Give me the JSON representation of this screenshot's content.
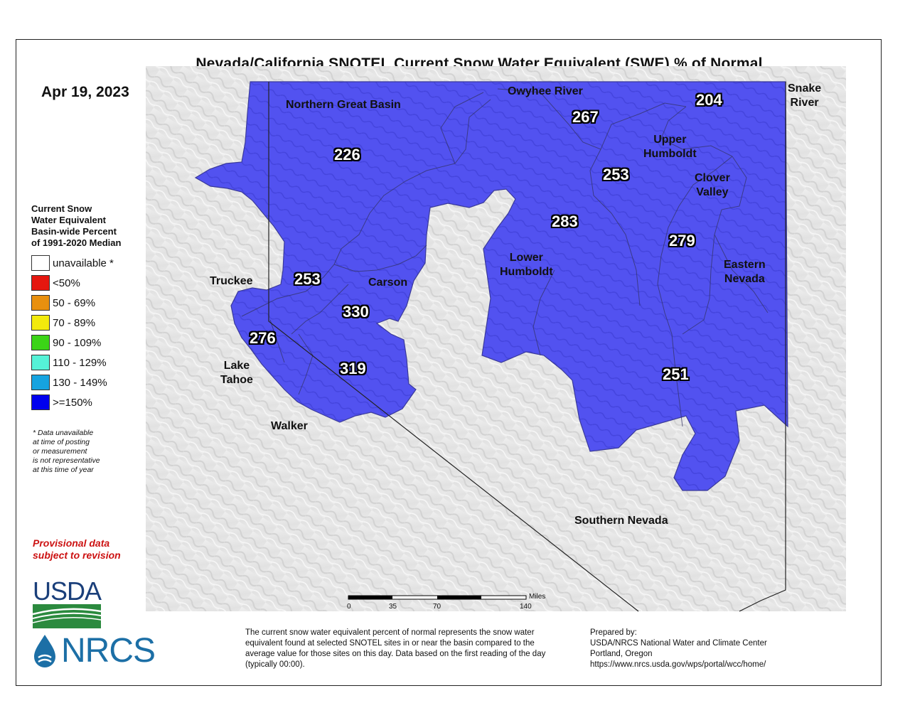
{
  "title": "Nevada/California SNOTEL Current Snow Water Equivalent (SWE) % of Normal",
  "date": "Apr 19, 2023",
  "colors": {
    "basin_fill": "#5252f0",
    "basin_stroke": "#3a3a9a",
    "terrain": "#e6e6e6",
    "gt150": "#0000ee"
  },
  "legend": {
    "title": "Current Snow\nWater Equivalent\nBasin-wide Percent\nof 1991-2020 Median",
    "items": [
      {
        "label": "unavailable *",
        "color": "#ffffff"
      },
      {
        "label": "<50%",
        "color": "#e5170f"
      },
      {
        "label": "50 - 69%",
        "color": "#e8900f"
      },
      {
        "label": "70 - 89%",
        "color": "#f2ea0c"
      },
      {
        "label": "90 - 109%",
        "color": "#3bd417"
      },
      {
        "label": "110 - 129%",
        "color": "#55f2d7"
      },
      {
        "label": "130 - 149%",
        "color": "#16a3e0"
      },
      {
        "label": ">=150%",
        "color": "#0000ee"
      }
    ],
    "note": "*  Data unavailable\n    at time of posting\n    or measurement\n    is not representative\n    at this time of year"
  },
  "provisional": "Provisional data\nsubject to revision",
  "logos": {
    "usda": "USDA",
    "nrcs": "NRCS"
  },
  "scale": {
    "unit": "Miles",
    "ticks": [
      "0",
      "35",
      "70",
      "140"
    ]
  },
  "footer": "The current snow water equivalent percent of normal represents the snow water equivalent found at selected SNOTEL sites in or near the basin compared to the average value for those sites on this day. Data based on the first reading of the day (typically 00:00).",
  "prepared": {
    "heading": "Prepared by:",
    "org": "USDA/NRCS National Water and Climate Center",
    "city": "Portland, Oregon",
    "url": "https://www.nrcs.usda.gov/wps/portal/wcc/home/"
  },
  "basins": [
    {
      "name": "Northern Great Basin",
      "value": "226"
    },
    {
      "name": "Owyhee River",
      "value": "267"
    },
    {
      "name": "Snake\nRiver",
      "value": "204"
    },
    {
      "name": "Upper\nHumboldt",
      "value": "253"
    },
    {
      "name": "Clover\nValley",
      "value": ""
    },
    {
      "name": "Lower\nHumboldt",
      "value": "283"
    },
    {
      "name": "Eastern\nNevada",
      "value": "279"
    },
    {
      "name": "Truckee",
      "value": "253"
    },
    {
      "name": "Carson",
      "value": "330"
    },
    {
      "name": "Lake\nTahoe",
      "value": "276"
    },
    {
      "name": "Walker",
      "value": "319"
    },
    {
      "name": "Southern Nevada",
      "value": "251"
    }
  ]
}
